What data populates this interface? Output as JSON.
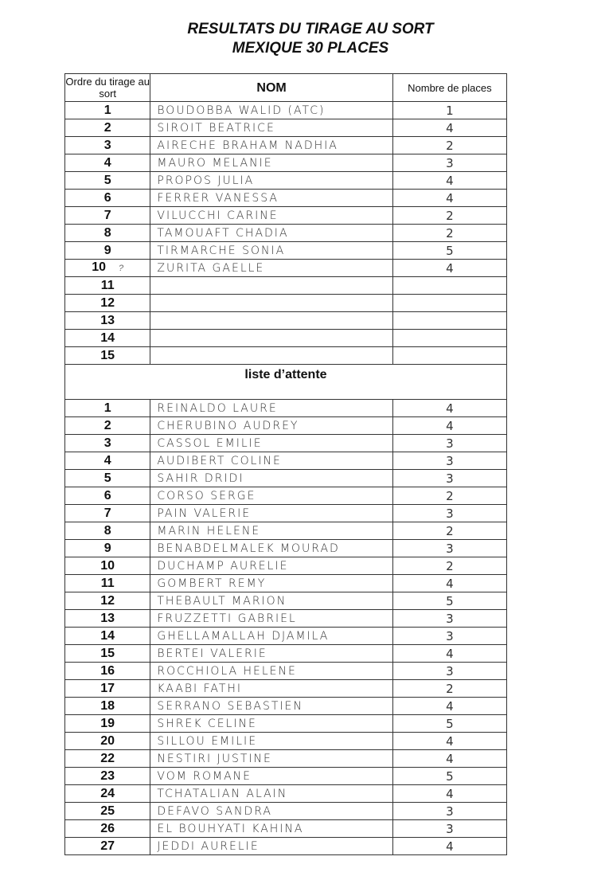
{
  "title_line1": "RESULTATS DU TIRAGE AU SORT",
  "title_line2": "MEXIQUE 30 PLACES",
  "headers": {
    "order": "Ordre du tirage au sort",
    "name": "NOM",
    "places": "Nombre de places"
  },
  "main_list": [
    {
      "n": "1",
      "name": "BOUDOBBA WALID (ATC)",
      "places": "1"
    },
    {
      "n": "2",
      "name": "SIROIT BEATRICE",
      "places": "4"
    },
    {
      "n": "3",
      "name": "AIRECHE BRAHAM NADHIA",
      "places": "2"
    },
    {
      "n": "4",
      "name": "MAURO MELANIE",
      "places": "3"
    },
    {
      "n": "5",
      "name": "PROPOS JULIA",
      "places": "4"
    },
    {
      "n": "6",
      "name": "FERRER VANESSA",
      "places": "4"
    },
    {
      "n": "7",
      "name": "VILUCCHI CARINE",
      "places": "2"
    },
    {
      "n": "8",
      "name": "TAMOUAFT CHADIA",
      "places": "2"
    },
    {
      "n": "9",
      "name": "TIRMARCHE SONIA",
      "places": "5"
    },
    {
      "n": "10",
      "name": "ZURITA GAELLE",
      "places": "4",
      "note": "?"
    },
    {
      "n": "11",
      "name": "",
      "places": ""
    },
    {
      "n": "12",
      "name": "",
      "places": ""
    },
    {
      "n": "13",
      "name": "",
      "places": ""
    },
    {
      "n": "14",
      "name": "",
      "places": ""
    },
    {
      "n": "15",
      "name": "",
      "places": ""
    }
  ],
  "waiting_title": "liste d’attente",
  "waiting_list": [
    {
      "n": "1",
      "name": "REINALDO LAURE",
      "places": "4"
    },
    {
      "n": "2",
      "name": "CHERUBINO AUDREY",
      "places": "4"
    },
    {
      "n": "3",
      "name": "CASSOL EMILIE",
      "places": "3"
    },
    {
      "n": "4",
      "name": "AUDIBERT COLINE",
      "places": "3"
    },
    {
      "n": "5",
      "name": "SAHIR DRIDI",
      "places": "3"
    },
    {
      "n": "6",
      "name": "CORSO SERGE",
      "places": "2"
    },
    {
      "n": "7",
      "name": "PAIN VALERIE",
      "places": "3"
    },
    {
      "n": "8",
      "name": "MARIN HELENE",
      "places": "2"
    },
    {
      "n": "9",
      "name": "BENABDELMALEK MOURAD",
      "places": "3"
    },
    {
      "n": "10",
      "name": "DUCHAMP AURELIE",
      "places": "2"
    },
    {
      "n": "11",
      "name": "GOMBERT REMY",
      "places": "4"
    },
    {
      "n": "12",
      "name": "THEBAULT MARION",
      "places": "5"
    },
    {
      "n": "13",
      "name": "FRUZZETTI GABRIEL",
      "places": "3"
    },
    {
      "n": "14",
      "name": "GHELLAMALLAH DJAMILA",
      "places": "3"
    },
    {
      "n": "15",
      "name": "BERTEI VALERIE",
      "places": "4"
    },
    {
      "n": "16",
      "name": "ROCCHIOLA HELENE",
      "places": "3"
    },
    {
      "n": "17",
      "name": "KAABI FATHI",
      "places": "2"
    },
    {
      "n": "18",
      "name": "SERRANO SEBASTIEN",
      "places": "4"
    },
    {
      "n": "19",
      "name": "SHREK CELINE",
      "places": "5"
    },
    {
      "n": "20",
      "name": "SILLOU EMILIE",
      "places": "4"
    },
    {
      "n": "22",
      "name": "NESTIRI JUSTINE",
      "places": "4"
    },
    {
      "n": "23",
      "name": "VOM ROMANE",
      "places": "5"
    },
    {
      "n": "24",
      "name": "TCHATALIAN ALAIN",
      "places": "4"
    },
    {
      "n": "25",
      "name": "DEFAVO SANDRA",
      "places": "3"
    },
    {
      "n": "26",
      "name": "EL BOUHYATI KAHINA",
      "places": "3"
    },
    {
      "n": "27",
      "name": "JEDDI AURELIE",
      "places": "4"
    }
  ]
}
